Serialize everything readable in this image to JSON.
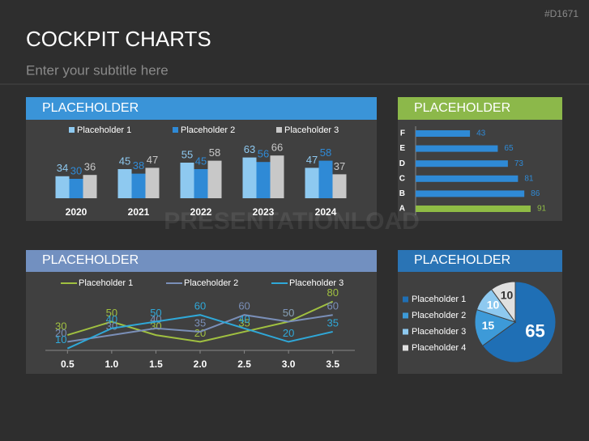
{
  "slide": {
    "code": "#D1671",
    "title": "COCKPIT CHARTS",
    "subtitle": "Enter your subtitle here",
    "watermark": "PRESENTATIONLOAD"
  },
  "chart_data": [
    {
      "type": "bar",
      "title": "PLACEHOLDER",
      "categories": [
        "2020",
        "2021",
        "2022",
        "2023",
        "2024"
      ],
      "series": [
        {
          "name": "Placeholder 1",
          "color": "#8ec9f0",
          "values": [
            34,
            45,
            55,
            63,
            47
          ]
        },
        {
          "name": "Placeholder 2",
          "color": "#2f8ad6",
          "values": [
            30,
            38,
            45,
            56,
            58
          ]
        },
        {
          "name": "Placeholder 3",
          "color": "#c8c8c8",
          "values": [
            36,
            47,
            58,
            66,
            37
          ]
        }
      ]
    },
    {
      "type": "barh",
      "title": "PLACEHOLDER",
      "categories": [
        "F",
        "E",
        "D",
        "C",
        "B",
        "A"
      ],
      "values": [
        43,
        65,
        73,
        81,
        86,
        91
      ],
      "colors": [
        "#2f8ad6",
        "#2f8ad6",
        "#2f8ad6",
        "#2f8ad6",
        "#2f8ad6",
        "#8fbc45"
      ]
    },
    {
      "type": "line",
      "title": "PLACEHOLDER",
      "x": [
        0.5,
        1.0,
        1.5,
        2.0,
        2.5,
        3.0,
        3.5
      ],
      "xlim": [
        0.25,
        3.75
      ],
      "xticks": [
        0.5,
        {
          "value": 1,
          "label": "1.0"
        },
        1.5,
        {
          "value": 2,
          "label": "2.0"
        },
        2.5,
        {
          "value": 3,
          "label": "3.0"
        },
        3.5
      ],
      "series": [
        {
          "name": "Placeholder 1",
          "color": "#a0c040",
          "values": [
            30,
            50,
            30,
            20,
            35,
            50,
            80
          ]
        },
        {
          "name": "Placeholder 2",
          "color": "#7a8fb8",
          "values": [
            20,
            30,
            40,
            35,
            60,
            50,
            60
          ]
        },
        {
          "name": "Placeholder 3",
          "color": "#2fa8d8",
          "values": [
            10,
            40,
            50,
            60,
            40,
            20,
            35
          ]
        }
      ]
    },
    {
      "type": "pie",
      "title": "PLACEHOLDER",
      "categories": [
        "Placeholder 1",
        "Placeholder 2",
        "Placeholder 3",
        "Placeholder 4"
      ],
      "values": [
        65,
        15,
        10,
        10
      ],
      "colors": [
        "#1f6fb5",
        "#3d9ad8",
        "#8ec9f0",
        "#e0e0e0"
      ]
    }
  ]
}
